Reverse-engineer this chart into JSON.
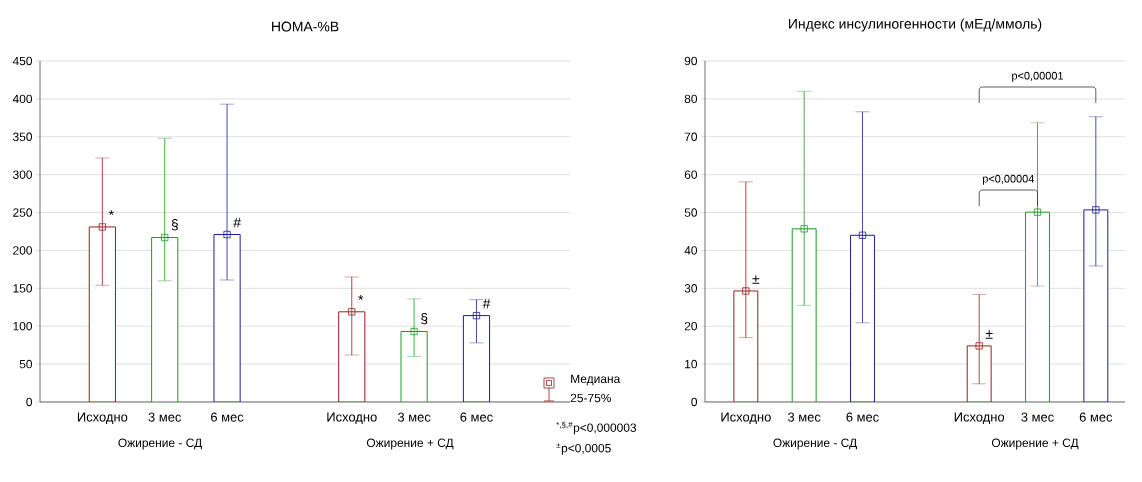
{
  "chart_data": [
    {
      "type": "bar",
      "title": "HOMA-%B",
      "categories": [
        "Исходно",
        "3 мес",
        "6 мес",
        null,
        "Исходно",
        "3 мес",
        "6 мес"
      ],
      "ylim": [
        0,
        450
      ],
      "yticks": [
        0,
        50,
        100,
        150,
        200,
        250,
        300,
        350,
        400,
        450
      ],
      "grid": "y",
      "series": [
        {
          "values": [
            231,
            217,
            221,
            null,
            119,
            93,
            114
          ],
          "colors": [
            "#9b1b1b",
            "#1e9a1e",
            "#1c1c9c",
            "#ffffff",
            "#9b1b1b",
            "#1e9a1e",
            "#1c1c9c"
          ],
          "errors": [
            [
              154,
              322
            ],
            [
              160,
              348
            ],
            [
              161,
              393
            ],
            null,
            [
              62,
              165
            ],
            [
              60,
              136
            ],
            [
              78,
              135
            ]
          ]
        },
        {
          "type": "scatter",
          "marker": "square",
          "values": [
            231,
            217,
            221,
            null,
            119,
            93,
            114
          ],
          "colors": [
            "#9b1b1b",
            "#1e9a1e",
            "#1c1c9c",
            "#ffffff",
            "#9b1b1b",
            "#1e9a1e",
            "#1c1c9c"
          ]
        }
      ],
      "annotations": [
        "*",
        "§",
        "#",
        "*",
        "§",
        "#",
        "Ожирение - СД",
        "Ожирение + СД",
        "Медиана",
        "25-75%",
        "$^{*,§,#}$p<0,000003",
        "$^{±}$p<0,0005"
      ]
    },
    {
      "type": "bar",
      "title": "Индекс инсулиногенности (мЕд/ммоль)",
      "categories": [
        "Исходно",
        "3 мес",
        "6 мес",
        null,
        "Исходно",
        "3 мес",
        "6 мес"
      ],
      "ylim": [
        0,
        90
      ],
      "yticks": [
        0,
        10,
        20,
        30,
        40,
        50,
        60,
        70,
        80,
        90
      ],
      "grid": "y",
      "series": [
        {
          "values": [
            29.3,
            45.7,
            44,
            null,
            14.8,
            50.1,
            50.7
          ],
          "colors": [
            "#9b1b1b",
            "#1e9a1e",
            "#1c1c9c",
            "#ffffff",
            "#9b1b1b",
            "#1e9a1e",
            "#1c1c9c"
          ],
          "errors": [
            [
              17,
              58.1
            ],
            [
              25.5,
              82
            ],
            [
              20.9,
              76.6
            ],
            null,
            [
              4.8,
              28.4
            ],
            [
              30.6,
              73.7
            ],
            [
              35.9,
              75.3
            ]
          ]
        },
        {
          "type": "scatter",
          "marker": "square",
          "values": [
            29.3,
            45.7,
            44,
            null,
            14.8,
            50.1,
            50.7
          ],
          "colors": [
            "#9b1b1b",
            "#1e9a1e",
            "#1c1c9c",
            "#ffffff",
            "#9b1b1b",
            "#1e9a1e",
            "#1c1c9c"
          ]
        }
      ],
      "annotations": [
        "±",
        "±",
        "p<0,00004",
        "p<0,00001",
        "Ожирение - СД",
        "Ожирение + СД"
      ]
    }
  ]
}
